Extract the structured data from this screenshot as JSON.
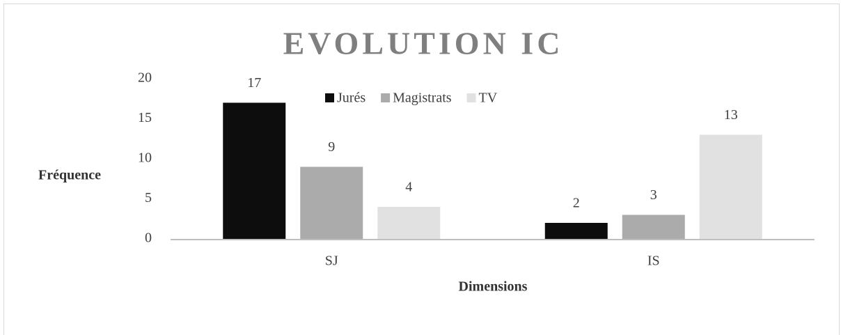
{
  "chart_data": {
    "type": "bar",
    "title": "EVOLUTION IC",
    "y_label": "Fréquence",
    "x_label": "Dimensions",
    "categories": [
      "SJ",
      "IS"
    ],
    "series": [
      {
        "name": "Jurés",
        "color": "#0d0d0d",
        "values": [
          17,
          2
        ]
      },
      {
        "name": "Magistrats",
        "color": "#ababab",
        "values": [
          9,
          3
        ]
      },
      {
        "name": "TV",
        "color": "#e1e1e1",
        "values": [
          4,
          13
        ]
      }
    ],
    "ylim": [
      0,
      20
    ],
    "yticks": [
      0,
      5,
      10,
      15,
      20
    ]
  }
}
